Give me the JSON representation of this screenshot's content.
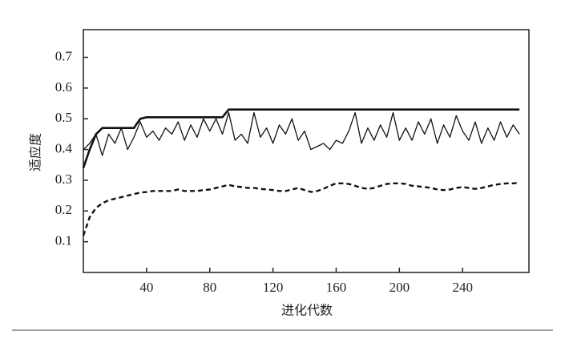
{
  "chart_data": {
    "type": "line",
    "x_label": "进化代数",
    "y_label": "适应度",
    "x": [
      0,
      4,
      8,
      12,
      16,
      20,
      24,
      28,
      32,
      36,
      40,
      44,
      48,
      52,
      56,
      60,
      64,
      68,
      72,
      76,
      80,
      84,
      88,
      92,
      96,
      100,
      104,
      108,
      112,
      116,
      120,
      124,
      128,
      132,
      136,
      140,
      144,
      148,
      152,
      156,
      160,
      164,
      168,
      172,
      176,
      180,
      184,
      188,
      192,
      196,
      200,
      204,
      208,
      212,
      216,
      220,
      224,
      228,
      232,
      236,
      240,
      244,
      248,
      252,
      256,
      260,
      264,
      268,
      272,
      276
    ],
    "series": [
      {
        "color": "#111111",
        "style": "thick",
        "values": [
          0.34,
          0.4,
          0.45,
          0.47,
          0.47,
          0.47,
          0.47,
          0.47,
          0.47,
          0.5,
          0.505,
          0.505,
          0.505,
          0.505,
          0.505,
          0.505,
          0.505,
          0.505,
          0.505,
          0.505,
          0.505,
          0.505,
          0.505,
          0.53,
          0.53,
          0.53,
          0.53,
          0.53,
          0.53,
          0.53,
          0.53,
          0.53,
          0.53,
          0.53,
          0.53,
          0.53,
          0.53,
          0.53,
          0.53,
          0.53,
          0.53,
          0.53,
          0.53,
          0.53,
          0.53,
          0.53,
          0.53,
          0.53,
          0.53,
          0.53,
          0.53,
          0.53,
          0.53,
          0.53,
          0.53,
          0.53,
          0.53,
          0.53,
          0.53,
          0.53,
          0.53,
          0.53,
          0.53,
          0.53,
          0.53,
          0.53,
          0.53,
          0.53,
          0.53,
          0.53
        ]
      },
      {
        "color": "#111111",
        "style": "thin",
        "values": [
          0.4,
          0.42,
          0.45,
          0.38,
          0.45,
          0.42,
          0.47,
          0.4,
          0.44,
          0.49,
          0.44,
          0.46,
          0.43,
          0.47,
          0.45,
          0.49,
          0.43,
          0.48,
          0.44,
          0.5,
          0.46,
          0.5,
          0.45,
          0.52,
          0.43,
          0.45,
          0.42,
          0.52,
          0.44,
          0.47,
          0.42,
          0.48,
          0.45,
          0.5,
          0.43,
          0.46,
          0.4,
          0.41,
          0.42,
          0.4,
          0.43,
          0.42,
          0.46,
          0.52,
          0.42,
          0.47,
          0.43,
          0.48,
          0.44,
          0.52,
          0.43,
          0.47,
          0.43,
          0.49,
          0.45,
          0.5,
          0.42,
          0.48,
          0.44,
          0.51,
          0.46,
          0.43,
          0.49,
          0.42,
          0.47,
          0.43,
          0.49,
          0.44,
          0.48,
          0.45
        ]
      },
      {
        "color": "#111111",
        "style": "dashed",
        "values": [
          0.12,
          0.18,
          0.21,
          0.225,
          0.235,
          0.24,
          0.245,
          0.25,
          0.255,
          0.26,
          0.262,
          0.265,
          0.265,
          0.265,
          0.265,
          0.27,
          0.265,
          0.265,
          0.265,
          0.268,
          0.27,
          0.275,
          0.28,
          0.285,
          0.28,
          0.278,
          0.275,
          0.275,
          0.272,
          0.27,
          0.268,
          0.265,
          0.265,
          0.27,
          0.275,
          0.268,
          0.262,
          0.265,
          0.272,
          0.282,
          0.29,
          0.29,
          0.288,
          0.282,
          0.275,
          0.272,
          0.275,
          0.282,
          0.288,
          0.29,
          0.29,
          0.288,
          0.282,
          0.28,
          0.278,
          0.275,
          0.27,
          0.268,
          0.27,
          0.275,
          0.278,
          0.275,
          0.272,
          0.275,
          0.28,
          0.285,
          0.288,
          0.29,
          0.29,
          0.292
        ]
      }
    ],
    "xlim": [
      0,
      282
    ],
    "ylim": [
      0,
      0.79
    ],
    "xticks": [
      40,
      80,
      120,
      160,
      200,
      240
    ],
    "yticks": [
      0.1,
      0.2,
      0.3,
      0.4,
      0.5,
      0.6,
      0.7
    ]
  }
}
